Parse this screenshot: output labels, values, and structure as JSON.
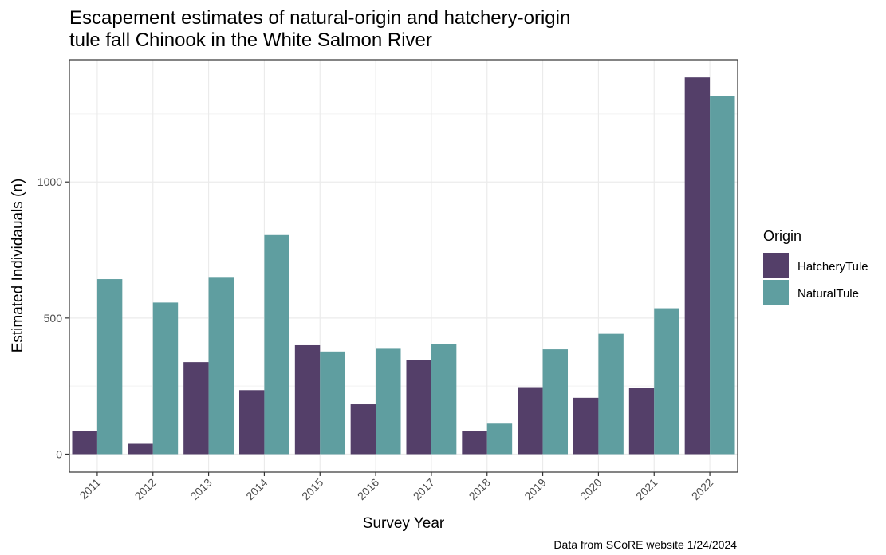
{
  "chart_data": {
    "type": "bar",
    "title": "Escapement estimates of natural-origin and hatchery-origin tule fall Chinook in the White Salmon River",
    "title_lines": [
      "Escapement estimates of natural-origin and hatchery-origin",
      "tule fall Chinook in the White Salmon River"
    ],
    "xlabel": "Survey Year",
    "ylabel": "Estimated Individauals (n)",
    "caption": "Data from SCoRE website 1/24/2024",
    "categories": [
      "2011",
      "2012",
      "2013",
      "2014",
      "2015",
      "2016",
      "2017",
      "2018",
      "2019",
      "2020",
      "2021",
      "2022"
    ],
    "series": [
      {
        "name": "HatcheryTule",
        "color": "#543f69",
        "values": [
          85,
          38,
          338,
          235,
          400,
          183,
          347,
          85,
          246,
          207,
          243,
          1384
        ]
      },
      {
        "name": "NaturalTule",
        "color": "#5f9ea0",
        "values": [
          643,
          557,
          651,
          805,
          377,
          387,
          405,
          112,
          385,
          442,
          536,
          1317
        ]
      }
    ],
    "ylim": [
      -66,
      1449
    ],
    "yticks": [
      0,
      500,
      1000
    ],
    "ytick_labels": [
      "0",
      "500",
      "1000"
    ],
    "grid": true,
    "legend": {
      "title": "Origin",
      "position": "right"
    }
  }
}
